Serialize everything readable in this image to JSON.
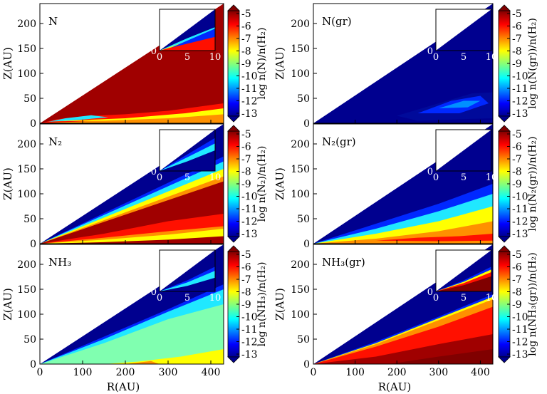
{
  "figure": {
    "xlabel": "R(AU)",
    "ylabel": "Z(AU)",
    "x_ticks": [
      "0",
      "100",
      "200",
      "300",
      "400"
    ],
    "y_ticks": [
      "0",
      "50",
      "100",
      "150",
      "200"
    ],
    "cb_ticks": [
      "-5",
      "-6",
      "-7",
      "-8",
      "-9",
      "-10",
      "-11",
      "-12",
      "-13"
    ],
    "inset_x_ticks": [
      "0",
      "5",
      "10"
    ],
    "inset_y_ticks": [
      "0",
      "1",
      "2",
      "3"
    ]
  },
  "panels": [
    {
      "label": "N",
      "cb_label": "log n(N)/n(H₂)",
      "pattern": "N"
    },
    {
      "label": "N(gr)",
      "cb_label": "log n(N(gr))/n(H₂)",
      "pattern": "Ngr"
    },
    {
      "label": "N₂",
      "cb_label": "log n(N₂)/n(H₂)",
      "pattern": "N2"
    },
    {
      "label": "N₂(gr)",
      "cb_label": "log n(N₂(gr))/n(H₂)",
      "pattern": "N2gr"
    },
    {
      "label": "NH₃",
      "cb_label": "log n(NH₃)/n(H₂)",
      "pattern": "NH3"
    },
    {
      "label": "NH₃(gr)",
      "cb_label": "log n(NH₃(gr))/n(H₂)",
      "pattern": "NH3gr"
    }
  ],
  "chart_data": [
    {
      "type": "heatmap",
      "title": "N",
      "xlabel": "R(AU)",
      "ylabel": "Z(AU)",
      "xlim": [
        0,
        430
      ],
      "ylim": [
        0,
        240
      ],
      "colorbar_label": "log n(N)/n(H₂)",
      "colorbar_range": [
        -13,
        -5
      ],
      "inset": {
        "xlim": [
          0,
          10
        ],
        "ylim": [
          0,
          3
        ]
      }
    },
    {
      "type": "heatmap",
      "title": "N(gr)",
      "xlabel": "R(AU)",
      "ylabel": "Z(AU)",
      "xlim": [
        0,
        430
      ],
      "ylim": [
        0,
        240
      ],
      "colorbar_label": "log n(N(gr))/n(H₂)",
      "colorbar_range": [
        -13,
        -5
      ],
      "inset": {
        "xlim": [
          0,
          10
        ],
        "ylim": [
          0,
          3
        ]
      }
    },
    {
      "type": "heatmap",
      "title": "N₂",
      "xlabel": "R(AU)",
      "ylabel": "Z(AU)",
      "xlim": [
        0,
        430
      ],
      "ylim": [
        0,
        240
      ],
      "colorbar_label": "log n(N₂)/n(H₂)",
      "colorbar_range": [
        -13,
        -5
      ],
      "inset": {
        "xlim": [
          0,
          10
        ],
        "ylim": [
          0,
          3
        ]
      }
    },
    {
      "type": "heatmap",
      "title": "N₂(gr)",
      "xlabel": "R(AU)",
      "ylabel": "Z(AU)",
      "xlim": [
        0,
        430
      ],
      "ylim": [
        0,
        240
      ],
      "colorbar_label": "log n(N₂(gr))/n(H₂)",
      "colorbar_range": [
        -13,
        -5
      ],
      "inset": {
        "xlim": [
          0,
          10
        ],
        "ylim": [
          0,
          3
        ]
      }
    },
    {
      "type": "heatmap",
      "title": "NH₃",
      "xlabel": "R(AU)",
      "ylabel": "Z(AU)",
      "xlim": [
        0,
        430
      ],
      "ylim": [
        0,
        240
      ],
      "colorbar_label": "log n(NH₃)/n(H₂)",
      "colorbar_range": [
        -13,
        -5
      ],
      "inset": {
        "xlim": [
          0,
          10
        ],
        "ylim": [
          0,
          3
        ]
      }
    },
    {
      "type": "heatmap",
      "title": "NH₃(gr)",
      "xlabel": "R(AU)",
      "ylabel": "Z(AU)",
      "xlim": [
        0,
        430
      ],
      "ylim": [
        0,
        240
      ],
      "colorbar_label": "log n(NH₃(gr))/n(H₂)",
      "colorbar_range": [
        -13,
        -5
      ],
      "inset": {
        "xlim": [
          0,
          10
        ],
        "ylim": [
          0,
          3
        ]
      }
    }
  ]
}
